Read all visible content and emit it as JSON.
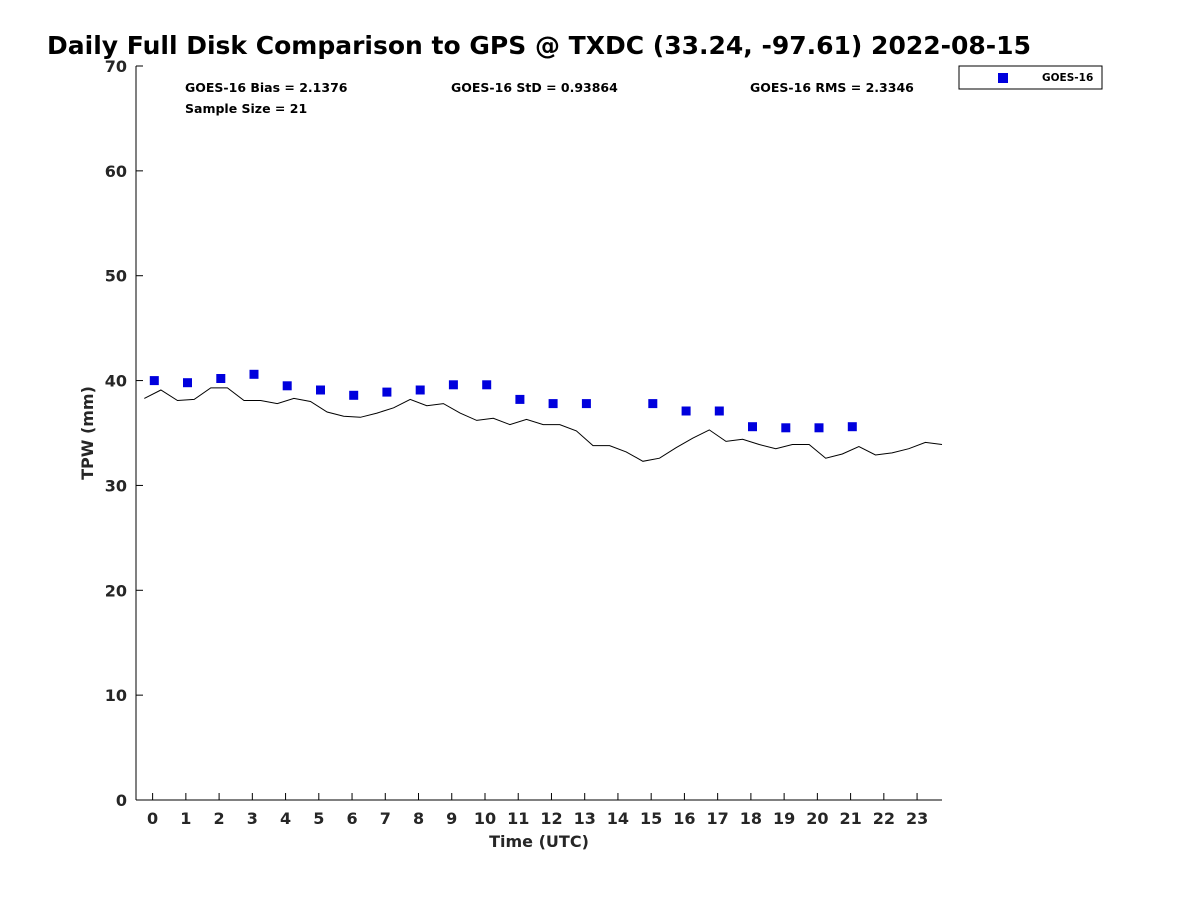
{
  "chart_data": {
    "type": "scatter",
    "title": "Daily Full Disk Comparison to GPS @ TXDC (33.24, -97.61) 2022-08-15",
    "xlabel": "Time (UTC)",
    "ylabel": "TPW (mm)",
    "xlim": [
      -0.5,
      23.75
    ],
    "ylim": [
      0,
      70
    ],
    "xticks": [
      0,
      1,
      2,
      3,
      4,
      5,
      6,
      7,
      8,
      9,
      10,
      11,
      12,
      13,
      14,
      15,
      16,
      17,
      18,
      19,
      20,
      21,
      22,
      23
    ],
    "yticks": [
      0,
      10,
      20,
      30,
      40,
      50,
      60,
      70
    ],
    "grid": false,
    "legend": {
      "placement": "outside-top-right",
      "entries": [
        "GOES-16"
      ]
    },
    "stats": {
      "bias": "GOES-16 Bias = 2.1376",
      "std": "GOES-16 StD = 0.93864",
      "rms": "GOES-16 RMS = 2.3346",
      "sample": "Sample Size = 21"
    },
    "series": [
      {
        "name": "GOES-16",
        "kind": "scatter",
        "color": "#0000dd",
        "marker": "square",
        "points": [
          [
            0.05,
            40.0
          ],
          [
            1.05,
            39.8
          ],
          [
            2.05,
            40.2
          ],
          [
            3.05,
            40.6
          ],
          [
            4.05,
            39.5
          ],
          [
            5.05,
            39.1
          ],
          [
            6.05,
            38.6
          ],
          [
            7.05,
            38.9
          ],
          [
            8.05,
            39.1
          ],
          [
            9.05,
            39.6
          ],
          [
            10.05,
            39.6
          ],
          [
            11.05,
            38.2
          ],
          [
            12.05,
            37.8
          ],
          [
            13.05,
            37.8
          ],
          [
            15.05,
            37.8
          ],
          [
            16.05,
            37.1
          ],
          [
            17.05,
            37.1
          ],
          [
            18.05,
            35.6
          ],
          [
            19.05,
            35.5
          ],
          [
            20.05,
            35.5
          ],
          [
            21.05,
            35.6
          ]
        ]
      },
      {
        "kind": "line",
        "color": "#000000",
        "points": [
          [
            -0.25,
            38.3
          ],
          [
            0.25,
            39.1
          ],
          [
            0.75,
            38.1
          ],
          [
            1.25,
            38.2
          ],
          [
            1.75,
            39.3
          ],
          [
            2.25,
            39.3
          ],
          [
            2.75,
            38.1
          ],
          [
            3.25,
            38.1
          ],
          [
            3.75,
            37.8
          ],
          [
            4.25,
            38.3
          ],
          [
            4.75,
            38.0
          ],
          [
            5.25,
            37.0
          ],
          [
            5.75,
            36.6
          ],
          [
            6.25,
            36.5
          ],
          [
            6.75,
            36.9
          ],
          [
            7.25,
            37.4
          ],
          [
            7.75,
            38.2
          ],
          [
            8.25,
            37.6
          ],
          [
            8.75,
            37.8
          ],
          [
            9.25,
            36.9
          ],
          [
            9.75,
            36.2
          ],
          [
            10.25,
            36.4
          ],
          [
            10.75,
            35.8
          ],
          [
            11.25,
            36.3
          ],
          [
            11.75,
            35.8
          ],
          [
            12.25,
            35.8
          ],
          [
            12.75,
            35.2
          ],
          [
            13.25,
            33.8
          ],
          [
            13.75,
            33.8
          ],
          [
            14.25,
            33.2
          ],
          [
            14.75,
            32.3
          ],
          [
            15.25,
            32.6
          ],
          [
            15.75,
            33.6
          ],
          [
            16.25,
            34.5
          ],
          [
            16.75,
            35.3
          ],
          [
            17.25,
            34.2
          ],
          [
            17.75,
            34.4
          ],
          [
            18.25,
            33.9
          ],
          [
            18.75,
            33.5
          ],
          [
            19.25,
            33.9
          ],
          [
            19.75,
            33.9
          ],
          [
            20.25,
            32.6
          ],
          [
            20.75,
            33.0
          ],
          [
            21.25,
            33.7
          ],
          [
            21.75,
            32.9
          ],
          [
            22.25,
            33.1
          ],
          [
            22.75,
            33.5
          ],
          [
            23.25,
            34.1
          ],
          [
            23.75,
            33.9
          ]
        ]
      }
    ]
  }
}
